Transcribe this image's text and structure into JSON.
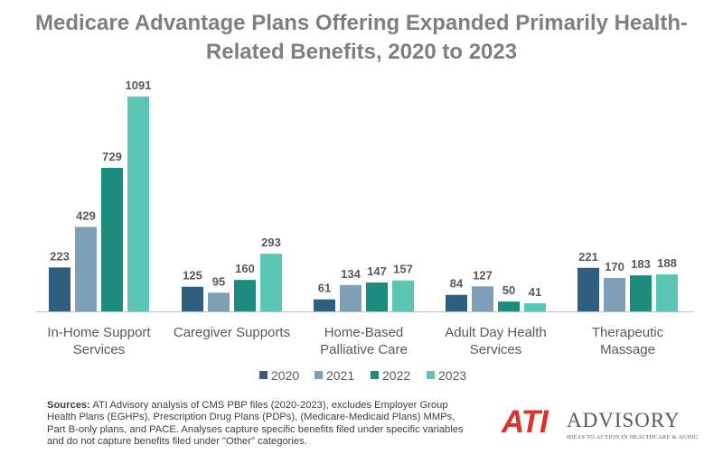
{
  "title_line1": "Medicare Advantage Plans Offering Expanded Primarily Health-",
  "title_line2": "Related Benefits, 2020 to 2023",
  "sources": {
    "label": "Sources:",
    "text": " ATI Advisory analysis of CMS PBP files (2020-2023), excludes Employer Group Health Plans (EGHPs), Prescription Drug Plans (PDPs), (Medicare-Medicaid Plans) MMPs, Part B-only plans, and PACE. Analyses capture specific benefits filed under specific variables and do not capture benefits filed under \"Other\" categories."
  },
  "logo": {
    "brand": "ATI",
    "name": "ADVISORY",
    "tagline": "IDEAS TO ACTION IN HEALTHCARE & AGING"
  },
  "chart_data": {
    "type": "bar",
    "title": "Medicare Advantage Plans Offering Expanded Primarily Health-Related Benefits, 2020 to 2023",
    "xlabel": "",
    "ylabel": "",
    "ylim": [
      0,
      1100
    ],
    "grid": false,
    "legend_position": "bottom",
    "categories": [
      [
        "In-Home Support",
        "Services"
      ],
      [
        "Caregiver Supports"
      ],
      [
        "Home-Based",
        "Palliative Care"
      ],
      [
        "Adult Day Health",
        "Services"
      ],
      [
        "Therapeutic",
        "Massage"
      ]
    ],
    "series": [
      {
        "name": "2020",
        "color": "#2e5f7e",
        "values": [
          223,
          125,
          61,
          84,
          221
        ]
      },
      {
        "name": "2021",
        "color": "#7f9fb7",
        "values": [
          429,
          95,
          134,
          127,
          170
        ]
      },
      {
        "name": "2022",
        "color": "#1e8c7c",
        "values": [
          729,
          160,
          147,
          50,
          183
        ]
      },
      {
        "name": "2023",
        "color": "#5cc6b4",
        "values": [
          1091,
          293,
          157,
          41,
          188
        ]
      }
    ]
  }
}
